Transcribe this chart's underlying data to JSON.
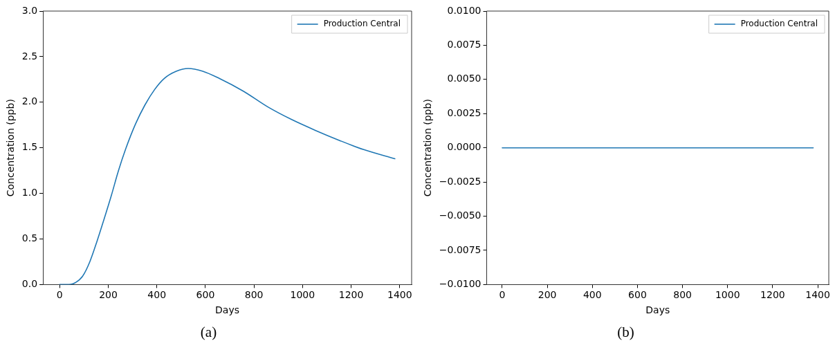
{
  "chart_data": [
    {
      "type": "line",
      "xlabel": "Days",
      "ylabel": "Concentration (ppb)",
      "legend": "top right",
      "marker": "none",
      "line_style": "solid",
      "grid": false,
      "annotations": [
        "(a)"
      ],
      "xlim": [
        -69,
        1449
      ],
      "xticks": [
        0,
        200,
        400,
        600,
        800,
        1000,
        1200,
        1400
      ],
      "ylim": [
        0,
        3
      ],
      "yticks": [
        {
          "value": 0,
          "label": "0.0"
        },
        0.5,
        {
          "value": 1,
          "label": "1.0"
        },
        1.5,
        {
          "value": 2,
          "label": "2.0"
        },
        2.5,
        {
          "value": 3,
          "label": "3.0"
        }
      ],
      "series": [
        {
          "name": "Production Central",
          "color": "#1f77b4",
          "x": [
            0,
            45,
            64,
            94,
            124,
            153,
            183,
            213,
            242,
            272,
            312,
            351,
            391,
            430,
            480,
            529,
            589,
            658,
            757,
            856,
            955,
            1054,
            1153,
            1252,
            1380
          ],
          "values": [
            0,
            0.003,
            0.02,
            0.09,
            0.25,
            0.47,
            0.72,
            0.98,
            1.25,
            1.49,
            1.76,
            1.97,
            2.14,
            2.26,
            2.34,
            2.37,
            2.34,
            2.26,
            2.12,
            1.95,
            1.81,
            1.69,
            1.58,
            1.48,
            1.38
          ]
        }
      ]
    },
    {
      "type": "line",
      "xlabel": "Days",
      "ylabel": "Concentration (ppb)",
      "legend": "top right",
      "marker": "none",
      "line_style": "solid",
      "grid": false,
      "annotations": [
        "(b)"
      ],
      "xlim": [
        -69,
        1449
      ],
      "xticks": [
        0,
        200,
        400,
        600,
        800,
        1000,
        1200,
        1400
      ],
      "ylim": [
        -0.01,
        0.01
      ],
      "yticks": [
        {
          "value": -0.01,
          "label": "−0.0100"
        },
        {
          "value": -0.0075,
          "label": "−0.0075"
        },
        {
          "value": -0.005,
          "label": "−0.0050"
        },
        {
          "value": -0.0025,
          "label": "−0.0025"
        },
        {
          "value": 0,
          "label": "0.0000"
        },
        {
          "value": 0.0025,
          "label": "0.0025"
        },
        {
          "value": 0.005,
          "label": "0.0050"
        },
        {
          "value": 0.0075,
          "label": "0.0075"
        },
        {
          "value": 0.01,
          "label": "0.0100"
        }
      ],
      "series": [
        {
          "name": "Production Central",
          "color": "#1f77b4",
          "x": [
            0,
            200,
            400,
            600,
            800,
            1000,
            1200,
            1380
          ],
          "values": [
            0,
            0,
            0,
            0,
            0,
            0,
            0,
            0
          ]
        }
      ]
    }
  ]
}
